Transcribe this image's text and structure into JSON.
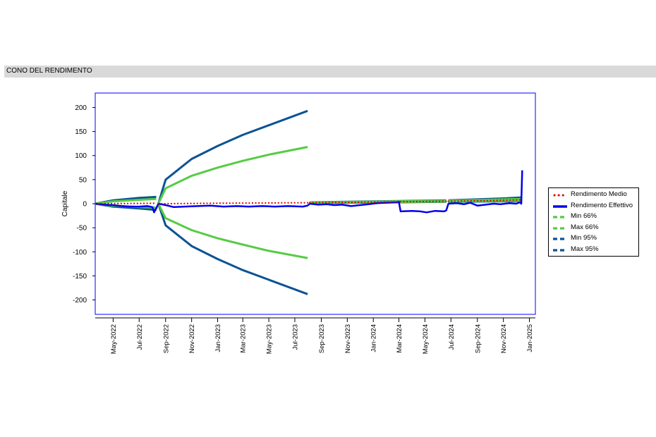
{
  "section": {
    "title": "CONO DEL RENDIMENTO"
  },
  "colors": {
    "frame": "#0000ff",
    "medio": "#e00000",
    "effettivo": "#0000ee",
    "green": "#55cc44",
    "green_dark": "#2b8a2b",
    "blue_dark": "#0b5394"
  },
  "chart_data": {
    "type": "line",
    "title": "",
    "xlabel": "",
    "ylabel": "Capitale",
    "ylim": [
      -230,
      230
    ],
    "xlim": [
      "2022-03-20",
      "2025-01-15"
    ],
    "yticks": [
      200,
      150,
      100,
      50,
      0,
      -50,
      -100,
      -150,
      -200
    ],
    "xticks": [
      "May-2022",
      "Jul-2022",
      "Sep-2022",
      "Nov-2022",
      "Jan-2023",
      "Mar-2023",
      "May-2023",
      "Jul-2023",
      "Sep-2023",
      "Nov-2023",
      "Jan-2024",
      "Mar-2024",
      "May-2024",
      "Jul-2024",
      "Sep-2024",
      "Nov-2024",
      "Jan-2025"
    ],
    "xtick_dates": [
      "2022-05-01",
      "2022-07-01",
      "2022-09-01",
      "2022-11-01",
      "2023-01-01",
      "2023-03-01",
      "2023-05-01",
      "2023-07-01",
      "2023-09-01",
      "2023-11-01",
      "2024-01-01",
      "2024-03-01",
      "2024-05-01",
      "2024-07-01",
      "2024-09-01",
      "2024-11-01",
      "2025-01-01"
    ],
    "grid": false,
    "legend_position": "right",
    "series": [
      {
        "name": "Rendimento Medio",
        "style": "dotted",
        "color": "#e00000",
        "segments": [
          [
            [
              "2022-03-20",
              0
            ],
            [
              "2022-05-01",
              0.3
            ],
            [
              "2022-07-01",
              0.6
            ],
            [
              "2022-08-10",
              1
            ]
          ],
          [
            [
              "2022-08-15",
              0
            ],
            [
              "2023-01-01",
              1
            ],
            [
              "2023-07-31",
              2
            ]
          ],
          [
            [
              "2023-08-05",
              2
            ],
            [
              "2024-03-01",
              4
            ],
            [
              "2024-06-20",
              5
            ]
          ],
          [
            [
              "2024-06-25",
              5
            ],
            [
              "2024-11-01",
              7
            ],
            [
              "2024-12-15",
              8
            ]
          ]
        ]
      },
      {
        "name": "Rendimento Effettivo",
        "style": "solid",
        "color": "#0000ee",
        "segments": [
          [
            [
              "2022-03-20",
              0
            ],
            [
              "2022-04-10",
              -2
            ],
            [
              "2022-05-01",
              -3
            ],
            [
              "2022-05-20",
              -5
            ],
            [
              "2022-06-10",
              -6
            ],
            [
              "2022-07-01",
              -6
            ],
            [
              "2022-07-20",
              -5
            ],
            [
              "2022-08-01",
              -7
            ],
            [
              "2022-08-05",
              -18
            ],
            [
              "2022-08-10",
              -10
            ],
            [
              "2022-08-15",
              0
            ],
            [
              "2022-09-01",
              -3
            ],
            [
              "2022-09-20",
              -7
            ],
            [
              "2022-10-15",
              -6
            ],
            [
              "2022-11-15",
              -5
            ],
            [
              "2022-12-15",
              -4
            ],
            [
              "2023-01-15",
              -6
            ],
            [
              "2023-02-15",
              -5
            ],
            [
              "2023-03-15",
              -6
            ],
            [
              "2023-04-15",
              -5
            ],
            [
              "2023-05-15",
              -6
            ],
            [
              "2023-06-15",
              -5
            ],
            [
              "2023-07-20",
              -6
            ],
            [
              "2023-07-31",
              -4
            ],
            [
              "2023-08-05",
              0
            ],
            [
              "2023-08-25",
              -2
            ],
            [
              "2023-09-15",
              -1
            ],
            [
              "2023-10-01",
              -3
            ],
            [
              "2023-10-20",
              -2
            ],
            [
              "2023-11-10",
              -5
            ],
            [
              "2023-12-01",
              -3
            ],
            [
              "2023-12-20",
              -1
            ],
            [
              "2024-01-10",
              1
            ],
            [
              "2024-02-01",
              2
            ],
            [
              "2024-02-25",
              3
            ],
            [
              "2024-03-01",
              4
            ],
            [
              "2024-03-05",
              -16
            ],
            [
              "2024-04-01",
              -15
            ],
            [
              "2024-04-20",
              -16
            ],
            [
              "2024-05-05",
              -18
            ],
            [
              "2024-05-25",
              -15
            ],
            [
              "2024-06-15",
              -16
            ],
            [
              "2024-06-20",
              -14
            ],
            [
              "2024-06-25",
              0
            ],
            [
              "2024-07-15",
              1
            ],
            [
              "2024-08-01",
              -1
            ],
            [
              "2024-08-15",
              2
            ],
            [
              "2024-09-01",
              -4
            ],
            [
              "2024-09-20",
              -2
            ],
            [
              "2024-10-10",
              0
            ],
            [
              "2024-10-25",
              -1
            ],
            [
              "2024-11-15",
              1
            ],
            [
              "2024-12-01",
              0
            ],
            [
              "2024-12-10",
              3
            ],
            [
              "2024-12-13",
              0
            ],
            [
              "2024-12-15",
              68
            ]
          ]
        ]
      },
      {
        "name": "Min 66%",
        "style": "dashed",
        "color": "#55cc44",
        "segments": [
          [
            [
              "2022-03-20",
              0
            ],
            [
              "2022-05-01",
              -4
            ],
            [
              "2022-07-01",
              -7
            ],
            [
              "2022-08-10",
              -8
            ]
          ],
          [
            [
              "2022-08-15",
              0
            ],
            [
              "2022-09-01",
              -30
            ],
            [
              "2022-11-01",
              -55
            ],
            [
              "2023-01-01",
              -72
            ],
            [
              "2023-03-01",
              -85
            ],
            [
              "2023-05-01",
              -98
            ],
            [
              "2023-07-31",
              -113
            ]
          ],
          [
            [
              "2023-08-05",
              2
            ],
            [
              "2024-03-01",
              3.5
            ],
            [
              "2024-06-20",
              4.5
            ]
          ],
          [
            [
              "2024-06-25",
              5
            ],
            [
              "2024-11-01",
              6
            ],
            [
              "2024-12-15",
              6.5
            ]
          ]
        ]
      },
      {
        "name": "Max 66%",
        "style": "dashed",
        "color": "#55cc44",
        "segments": [
          [
            [
              "2022-03-20",
              0
            ],
            [
              "2022-05-01",
              5
            ],
            [
              "2022-07-01",
              8
            ],
            [
              "2022-08-10",
              10
            ]
          ],
          [
            [
              "2022-08-15",
              0
            ],
            [
              "2022-09-01",
              32
            ],
            [
              "2022-11-01",
              58
            ],
            [
              "2023-01-01",
              75
            ],
            [
              "2023-03-01",
              89
            ],
            [
              "2023-05-01",
              102
            ],
            [
              "2023-07-31",
              118
            ]
          ],
          [
            [
              "2023-08-05",
              2.5
            ],
            [
              "2024-03-01",
              5
            ],
            [
              "2024-06-20",
              6
            ]
          ],
          [
            [
              "2024-06-25",
              6
            ],
            [
              "2024-11-01",
              9
            ],
            [
              "2024-12-15",
              10
            ]
          ]
        ]
      },
      {
        "name": "Min 95%",
        "style": "dashed",
        "color": "#0b5394",
        "segments": [
          [
            [
              "2022-03-20",
              0
            ],
            [
              "2022-05-01",
              -6
            ],
            [
              "2022-07-01",
              -10
            ],
            [
              "2022-08-10",
              -13
            ]
          ],
          [
            [
              "2022-08-15",
              0
            ],
            [
              "2022-09-01",
              -45
            ],
            [
              "2022-11-01",
              -88
            ],
            [
              "2023-01-01",
              -115
            ],
            [
              "2023-03-01",
              -138
            ],
            [
              "2023-05-01",
              -158
            ],
            [
              "2023-07-31",
              -188
            ]
          ],
          [
            [
              "2023-08-05",
              1.5
            ],
            [
              "2024-03-01",
              3
            ],
            [
              "2024-06-20",
              4
            ]
          ],
          [
            [
              "2024-06-25",
              4
            ],
            [
              "2024-11-01",
              5
            ],
            [
              "2024-12-15",
              5.5
            ]
          ]
        ]
      },
      {
        "name": "Max 95%",
        "style": "dashed",
        "color": "#0b5394",
        "segments": [
          [
            [
              "2022-03-20",
              0
            ],
            [
              "2022-05-01",
              7
            ],
            [
              "2022-07-01",
              12
            ],
            [
              "2022-08-10",
              14
            ]
          ],
          [
            [
              "2022-08-15",
              0
            ],
            [
              "2022-09-01",
              50
            ],
            [
              "2022-11-01",
              93
            ],
            [
              "2023-01-01",
              120
            ],
            [
              "2023-03-01",
              143
            ],
            [
              "2023-05-01",
              163
            ],
            [
              "2023-07-31",
              193
            ]
          ],
          [
            [
              "2023-08-05",
              3
            ],
            [
              "2024-03-01",
              5.5
            ],
            [
              "2024-06-20",
              7
            ]
          ],
          [
            [
              "2024-06-25",
              7
            ],
            [
              "2024-11-01",
              11
            ],
            [
              "2024-12-15",
              13
            ]
          ]
        ]
      }
    ]
  }
}
